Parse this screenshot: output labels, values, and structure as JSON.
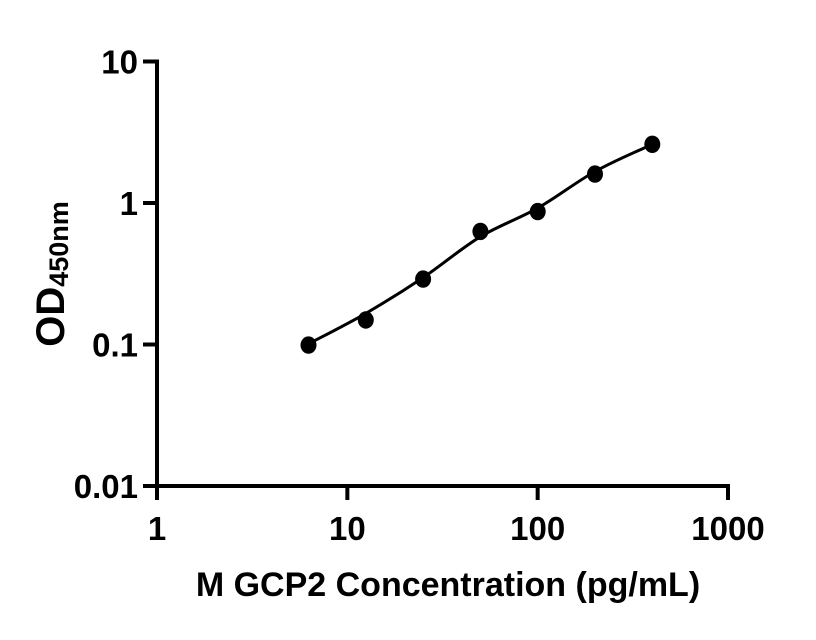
{
  "figure": {
    "background_color": "#ffffff",
    "foreground_color": "#000000"
  },
  "chart_data": {
    "type": "scatter",
    "title": "",
    "xlabel": "M GCP2 Concentration (pg/mL)",
    "ylabel_main": "OD",
    "ylabel_sub": "450nm",
    "x_scale": "log",
    "y_scale": "log",
    "x_range": [
      1,
      1000
    ],
    "y_range": [
      0.01,
      10
    ],
    "x_tick_values": [
      1,
      10,
      100,
      1000
    ],
    "x_tick_labels": [
      "1",
      "10",
      "100",
      "1000"
    ],
    "y_tick_values": [
      10,
      1,
      0.1,
      0.01
    ],
    "y_tick_labels": [
      "10",
      "1",
      "0.1",
      "0.01"
    ],
    "grid": false,
    "legend_position": "none",
    "series": [
      {
        "name": "standard-curve-points",
        "marker": "filled-circle",
        "color": "#000000",
        "x": [
          6.25,
          12.5,
          25,
          50,
          100,
          200,
          400
        ],
        "y": [
          0.099,
          0.149,
          0.29,
          0.63,
          0.87,
          1.6,
          2.6
        ]
      }
    ],
    "fit_line": {
      "name": "fitted-curve",
      "color": "#000000",
      "x": [
        6.25,
        12.5,
        25,
        50,
        100,
        200,
        400
      ],
      "y": [
        0.101,
        0.166,
        0.297,
        0.578,
        0.92,
        1.67,
        2.6
      ]
    }
  }
}
